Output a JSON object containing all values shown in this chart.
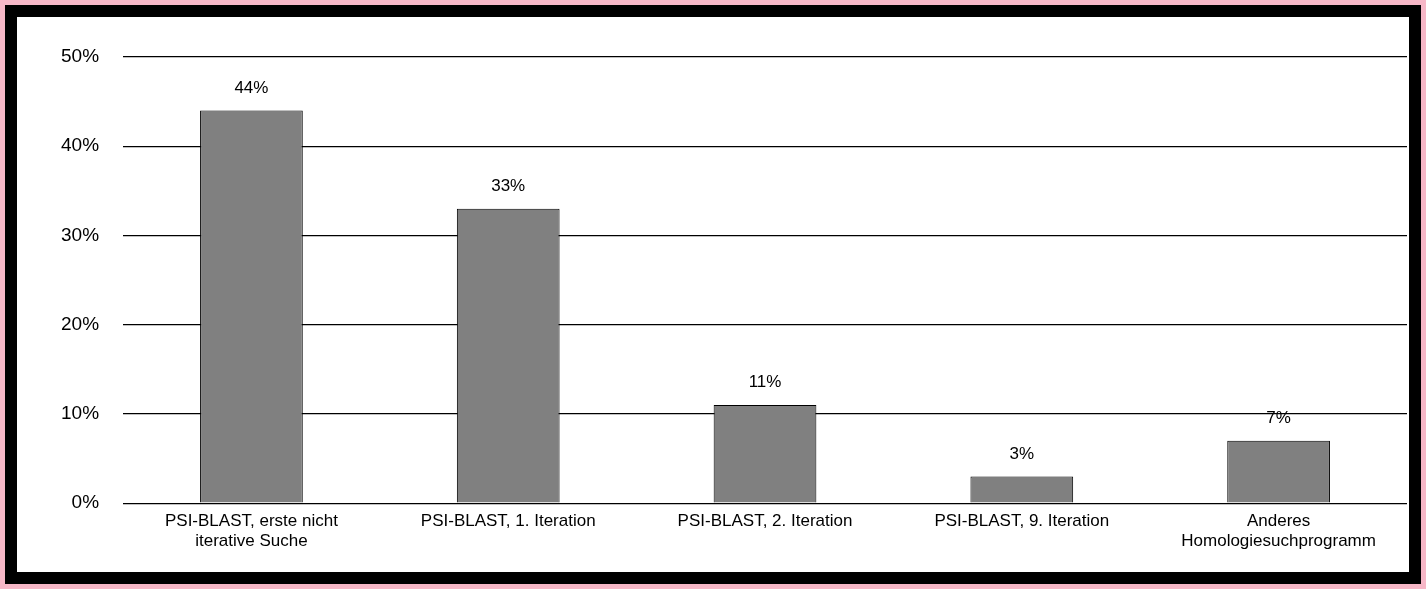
{
  "chart_data": {
    "type": "bar",
    "categories": [
      "PSI-BLAST, erste nicht iterative Suche",
      "PSI-BLAST, 1. Iteration",
      "PSI-BLAST, 2. Iteration",
      "PSI-BLAST, 9. Iteration",
      "Anderes Homologiesuchprogramm"
    ],
    "values": [
      44,
      33,
      11,
      3,
      7
    ],
    "value_labels": [
      "44%",
      "33%",
      "11%",
      "3%",
      "7%"
    ],
    "color": "#808080",
    "ylim": [
      0,
      50
    ],
    "yticks": [
      {
        "value": 0,
        "label": "0%"
      },
      {
        "value": 10,
        "label": "10%"
      },
      {
        "value": 20,
        "label": "20%"
      },
      {
        "value": 30,
        "label": "30%"
      },
      {
        "value": 40,
        "label": "40%"
      },
      {
        "value": 50,
        "label": "50%"
      }
    ],
    "grid": "y",
    "legend": false
  }
}
